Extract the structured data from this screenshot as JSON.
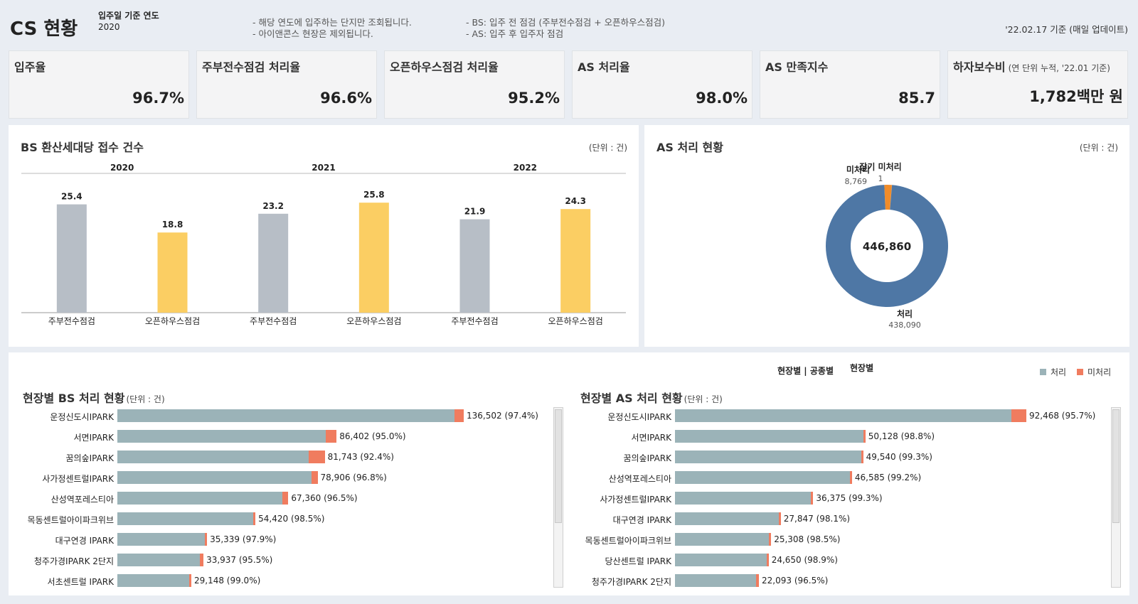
{
  "header": {
    "title": "CS 현황",
    "filter_label": "입주일 기준 연도",
    "filter_value": "2020",
    "notes_left": [
      "- 해당 연도에 입주하는 단지만 조회됩니다.",
      "- 아이앤콘스 현장은 제외됩니다."
    ],
    "notes_right": [
      "- BS: 입주 전 점검 (주부전수점검 + 오픈하우스점검)",
      "- AS: 입주 후 입주자 점검"
    ],
    "basis_date": "'22.02.17 기준 (매일 업데이트)"
  },
  "kpis": [
    {
      "label": "입주율",
      "sub": "",
      "value": "96.7%"
    },
    {
      "label": "주부전수점검 처리율",
      "sub": "",
      "value": "96.6%"
    },
    {
      "label": "오픈하우스점검 처리율",
      "sub": "",
      "value": "95.2%"
    },
    {
      "label": "AS 처리율",
      "sub": "",
      "value": "98.0%"
    },
    {
      "label": "AS 만족지수",
      "sub": "",
      "value": "85.7"
    },
    {
      "label": "하자보수비",
      "sub": "(연 단위 누적, '22.01 기준)",
      "value": "1,782백만 원"
    }
  ],
  "bs_panel": {
    "title": "BS 환산세대당 접수 건수",
    "unit": "(단위 : 건)"
  },
  "as_panel": {
    "title": "AS 처리 현황",
    "unit": "(단위 : 건)"
  },
  "chart_data": [
    {
      "type": "bar",
      "title": "BS 환산세대당 접수 건수",
      "groups": [
        "2020",
        "2021",
        "2022"
      ],
      "categories": [
        "주부전수점검",
        "오픈하우스점검"
      ],
      "values": [
        [
          25.4,
          18.8
        ],
        [
          23.2,
          25.8
        ],
        [
          21.9,
          24.3
        ]
      ],
      "ylim": [
        0,
        30
      ],
      "colors": [
        "#b7bec6",
        "#fbce63"
      ],
      "grid": false
    },
    {
      "type": "pie",
      "title": "AS 처리 현황",
      "center_label": "446,860",
      "slices": [
        {
          "label": "처리",
          "value": 438090,
          "value_label": "438,090",
          "color": "#4e77a5"
        },
        {
          "label": "미처리",
          "value": 8769,
          "value_label": "8,769",
          "color": "#f08c2a"
        },
        {
          "label": "장기 미처리",
          "value": 1,
          "value_label": "1",
          "color": "#f08c2a"
        }
      ]
    },
    {
      "type": "bar",
      "orientation": "horizontal",
      "title": "현장별 BS 처리 현황",
      "unit": "(단위 : 건)",
      "series": [
        {
          "name": "처리"
        },
        {
          "name": "미처리"
        }
      ],
      "max": 136502,
      "rows": [
        {
          "name": "운정신도시IPARK",
          "total": 136502,
          "pct": 97.4,
          "label": "136,502 (97.4%)"
        },
        {
          "name": "서면IPARK",
          "total": 86402,
          "pct": 95.0,
          "label": "86,402 (95.0%)"
        },
        {
          "name": "꿈의숲IPARK",
          "total": 81743,
          "pct": 92.4,
          "label": "81,743 (92.4%)"
        },
        {
          "name": "사가정센트럴IPARK",
          "total": 78906,
          "pct": 96.8,
          "label": "78,906 (96.8%)"
        },
        {
          "name": "산성역포레스티아",
          "total": 67360,
          "pct": 96.5,
          "label": "67,360 (96.5%)"
        },
        {
          "name": "목동센트럴아이파크위브",
          "total": 54420,
          "pct": 98.5,
          "label": "54,420 (98.5%)"
        },
        {
          "name": "대구연경 IPARK",
          "total": 35339,
          "pct": 97.9,
          "label": "35,339 (97.9%)"
        },
        {
          "name": "청주가경IPARK 2단지",
          "total": 33937,
          "pct": 95.5,
          "label": "33,937 (95.5%)"
        },
        {
          "name": "서초센트럴 IPARK",
          "total": 29148,
          "pct": 99.0,
          "label": "29,148 (99.0%)"
        }
      ]
    },
    {
      "type": "bar",
      "orientation": "horizontal",
      "title": "현장별 AS 처리 현황",
      "unit": "(단위 : 건)",
      "series": [
        {
          "name": "처리"
        },
        {
          "name": "미처리"
        }
      ],
      "max": 92468,
      "rows": [
        {
          "name": "운정신도시IPARK",
          "total": 92468,
          "pct": 95.7,
          "label": "92,468 (95.7%)"
        },
        {
          "name": "서면IPARK",
          "total": 50128,
          "pct": 98.8,
          "label": "50,128 (98.8%)"
        },
        {
          "name": "꿈의숲IPARK",
          "total": 49540,
          "pct": 99.3,
          "label": "49,540 (99.3%)"
        },
        {
          "name": "산성역포레스티아",
          "total": 46585,
          "pct": 99.2,
          "label": "46,585 (99.2%)"
        },
        {
          "name": "사가정센트럴IPARK",
          "total": 36375,
          "pct": 99.3,
          "label": "36,375 (99.3%)"
        },
        {
          "name": "대구연경 IPARK",
          "total": 27847,
          "pct": 98.1,
          "label": "27,847 (98.1%)"
        },
        {
          "name": "목동센트럴아이파크위브",
          "total": 25308,
          "pct": 98.5,
          "label": "25,308 (98.5%)"
        },
        {
          "name": "당산센트럴 IPARK",
          "total": 24650,
          "pct": 98.9,
          "label": "24,650 (98.9%)"
        },
        {
          "name": "청주가경IPARK 2단지",
          "total": 22093,
          "pct": 96.5,
          "label": "22,093 (96.5%)"
        }
      ]
    }
  ],
  "view_toggle": {
    "options_label": "현장별 | 공종별",
    "selected": "현장별"
  },
  "legend": [
    {
      "label": "처리",
      "color": "#9bb3b8"
    },
    {
      "label": "미처리",
      "color": "#f07c5f"
    }
  ]
}
